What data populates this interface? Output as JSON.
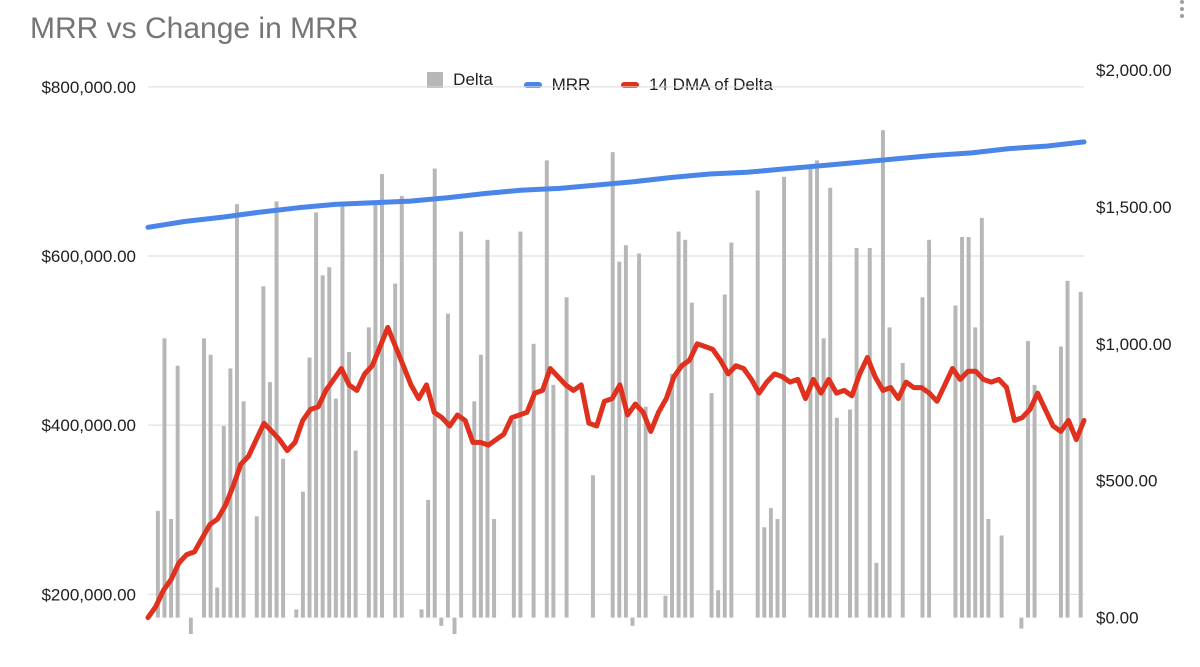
{
  "chart_data": {
    "type": "bar+line",
    "title": "MRR vs Change in MRR",
    "colors": {
      "delta": "#b7b7b7",
      "mrr": "#4a86e8",
      "dma": "#e0301e",
      "grid": "#d9d9d9"
    },
    "legend": {
      "placement": "top",
      "items": [
        {
          "name": "Delta",
          "swatch": "box"
        },
        {
          "name": "MRR",
          "swatch": "line"
        },
        {
          "name": "14 DMA of Delta",
          "swatch": "line"
        }
      ]
    },
    "left_axis": {
      "range": [
        140000,
        820000
      ],
      "ticks": [
        {
          "value": 200000,
          "label": "$200,000.00"
        },
        {
          "value": 400000,
          "label": "$400,000.00"
        },
        {
          "value": 600000,
          "label": "$600,000.00"
        },
        {
          "value": 800000,
          "label": "$800,000.00"
        }
      ]
    },
    "right_axis": {
      "range": [
        -100,
        2000
      ],
      "ticks": [
        {
          "value": 0,
          "label": "$0.00"
        },
        {
          "value": 500,
          "label": "$500.00"
        },
        {
          "value": 1000,
          "label": "$1,000.00"
        },
        {
          "value": 1500,
          "label": "$1,500.00"
        },
        {
          "value": 2000,
          "label": "$2,000.00"
        }
      ]
    },
    "grid": true,
    "series": [
      {
        "name": "Delta",
        "type": "bar",
        "axis": "right",
        "values": [
          0,
          390,
          1020,
          360,
          920,
          0,
          -60,
          0,
          1020,
          960,
          110,
          700,
          910,
          1510,
          790,
          0,
          370,
          1210,
          860,
          1520,
          580,
          0,
          30,
          460,
          950,
          1480,
          1250,
          1280,
          800,
          1520,
          970,
          610,
          0,
          1060,
          1510,
          1620,
          0,
          1220,
          1540,
          0,
          0,
          30,
          430,
          1640,
          -30,
          1110,
          -60,
          1410,
          0,
          790,
          960,
          1380,
          360,
          0,
          0,
          720,
          1410,
          0,
          1000,
          0,
          1670,
          850,
          0,
          1170,
          0,
          0,
          0,
          520,
          0,
          0,
          1700,
          1300,
          1360,
          -30,
          1330,
          770,
          0,
          0,
          80,
          890,
          1410,
          1380,
          1150,
          0,
          0,
          820,
          100,
          1180,
          1370,
          0,
          0,
          0,
          1560,
          330,
          400,
          360,
          1610,
          0,
          0,
          0,
          1640,
          1670,
          1020,
          1570,
          730,
          0,
          760,
          1350,
          0,
          1350,
          200,
          1780,
          1060,
          0,
          930,
          0,
          0,
          1170,
          1380,
          0,
          0,
          0,
          1140,
          1390,
          1390,
          1060,
          1460,
          360,
          0,
          300,
          0,
          0,
          -40,
          1010,
          850,
          0,
          0,
          0,
          990,
          1230,
          0,
          1190
        ]
      },
      {
        "name": "MRR",
        "type": "line",
        "axis": "left",
        "values": [
          634000,
          641000,
          646000,
          652000,
          657000,
          661000,
          663000,
          665000,
          669000,
          674000,
          678000,
          680000,
          684000,
          688000,
          693000,
          697000,
          699000,
          703000,
          707000,
          711000,
          715000,
          719000,
          722000,
          727000,
          730000,
          735000
        ]
      },
      {
        "name": "14 DMA of Delta",
        "type": "line",
        "axis": "right",
        "values": [
          0,
          40,
          100,
          140,
          200,
          230,
          240,
          290,
          340,
          360,
          410,
          480,
          560,
          590,
          650,
          710,
          680,
          650,
          610,
          640,
          720,
          760,
          770,
          830,
          870,
          910,
          850,
          830,
          890,
          920,
          990,
          1060,
          990,
          920,
          850,
          800,
          850,
          750,
          730,
          700,
          740,
          720,
          640,
          640,
          630,
          650,
          670,
          730,
          740,
          750,
          820,
          830,
          910,
          880,
          850,
          830,
          850,
          710,
          700,
          790,
          800,
          850,
          740,
          780,
          750,
          680,
          750,
          800,
          880,
          920,
          940,
          1000,
          990,
          980,
          940,
          890,
          920,
          910,
          870,
          820,
          860,
          890,
          880,
          860,
          870,
          800,
          870,
          820,
          870,
          820,
          830,
          810,
          890,
          950,
          880,
          830,
          840,
          800,
          860,
          840,
          840,
          820,
          790,
          850,
          910,
          870,
          900,
          900,
          870,
          860,
          870,
          840,
          720,
          730,
          760,
          820,
          760,
          700,
          680,
          720,
          650,
          720
        ]
      }
    ]
  }
}
